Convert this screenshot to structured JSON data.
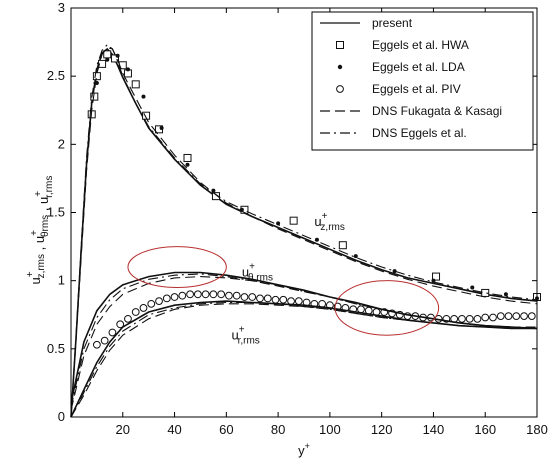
{
  "chart_data": {
    "type": "line",
    "xlabel": "y",
    "xlabel_sup": "+",
    "ylabel_parts": [
      {
        "base": "u",
        "sup": "+",
        "sub": "z,rms"
      },
      {
        "base": "u",
        "sup": "+",
        "sub": "θrms"
      },
      {
        "base": "u",
        "sup": "+",
        "sub": "r,rms"
      }
    ],
    "xlim": [
      0,
      180
    ],
    "ylim": [
      0,
      3
    ],
    "xticks": [
      0,
      20,
      40,
      60,
      80,
      100,
      120,
      140,
      160,
      180
    ],
    "xtick_labels": [
      "",
      "20",
      "40",
      "60",
      "80",
      "100",
      "120",
      "140",
      "160",
      "180"
    ],
    "yticks": [
      0,
      0.5,
      1,
      1.5,
      2,
      2.5,
      3
    ],
    "ytick_labels": [
      "0",
      "0.5",
      "1",
      "1.5",
      "2",
      "2.5",
      "3"
    ],
    "grid": false,
    "legend_position": "top-right",
    "annotations": [
      {
        "base": "u",
        "sup": "+",
        "sub": "z,rms",
        "x": 94,
        "y": 1.4
      },
      {
        "base": "u",
        "sup": "+",
        "sub": "θ,rms",
        "x": 66,
        "y": 1.03
      },
      {
        "base": "u",
        "sup": "+",
        "sub": "r,rms",
        "x": 62,
        "y": 0.57
      }
    ],
    "highlight_ellipses": [
      {
        "cx": 41,
        "cy": 1.1,
        "rx": 19,
        "ry": 0.15
      },
      {
        "cx": 122,
        "cy": 0.8,
        "rx": 20,
        "ry": 0.2
      }
    ],
    "series": [
      {
        "name": "present",
        "style": "solid",
        "groups": [
          {
            "x": [
              0,
              2,
              4,
              6,
              8,
              10,
              12,
              14,
              16,
              18,
              20,
              25,
              30,
              40,
              50,
              60,
              70,
              80,
              90,
              100,
              110,
              120,
              130,
              140,
              150,
              160,
              170,
              180
            ],
            "y": [
              0,
              0.6,
              1.25,
              1.85,
              2.3,
              2.55,
              2.67,
              2.7,
              2.66,
              2.58,
              2.49,
              2.3,
              2.12,
              1.89,
              1.7,
              1.56,
              1.47,
              1.39,
              1.31,
              1.23,
              1.15,
              1.08,
              1.02,
              0.98,
              0.94,
              0.9,
              0.87,
              0.85
            ]
          },
          {
            "x": [
              0,
              5,
              10,
              15,
              20,
              30,
              40,
              50,
              60,
              70,
              80,
              90,
              100,
              110,
              120,
              130,
              140,
              150,
              160,
              170,
              180
            ],
            "y": [
              0.1,
              0.55,
              0.78,
              0.9,
              0.97,
              1.03,
              1.06,
              1.06,
              1.04,
              1.01,
              0.97,
              0.93,
              0.88,
              0.84,
              0.79,
              0.75,
              0.72,
              0.69,
              0.67,
              0.66,
              0.65
            ]
          },
          {
            "x": [
              0,
              5,
              10,
              15,
              20,
              30,
              40,
              50,
              60,
              70,
              80,
              90,
              100,
              110,
              120,
              130,
              140,
              150,
              160,
              170,
              180
            ],
            "y": [
              0,
              0.2,
              0.4,
              0.55,
              0.66,
              0.77,
              0.82,
              0.84,
              0.85,
              0.84,
              0.83,
              0.82,
              0.8,
              0.77,
              0.74,
              0.71,
              0.69,
              0.67,
              0.66,
              0.65,
              0.65
            ]
          }
        ]
      },
      {
        "name": "Eggels et al. HWA",
        "style": "marker-square",
        "points": {
          "x": [
            8,
            9,
            10,
            12,
            14,
            17,
            20,
            22,
            25,
            29,
            34,
            45,
            56,
            67,
            86,
            105,
            141,
            160,
            180
          ],
          "y": [
            2.22,
            2.35,
            2.5,
            2.59,
            2.66,
            2.63,
            2.58,
            2.52,
            2.44,
            2.21,
            2.11,
            1.9,
            1.62,
            1.52,
            1.44,
            1.26,
            1.03,
            0.91,
            0.88
          ]
        }
      },
      {
        "name": "Eggels et al. LDA",
        "style": "marker-dot",
        "points": {
          "x": [
            10,
            14,
            18,
            22,
            28,
            35,
            45,
            55,
            66,
            80,
            95,
            110,
            125,
            140,
            155,
            168,
            180
          ],
          "y": [
            2.45,
            2.62,
            2.65,
            2.55,
            2.35,
            2.12,
            1.85,
            1.66,
            1.52,
            1.42,
            1.3,
            1.18,
            1.07,
            1.0,
            0.95,
            0.9,
            0.87
          ]
        }
      },
      {
        "name": "Eggels et al. PIV",
        "style": "marker-circle",
        "points": {
          "x": [
            10,
            13,
            16,
            19,
            22,
            25,
            28,
            31,
            34,
            37,
            40,
            43,
            46,
            49,
            52,
            55,
            58,
            61,
            64,
            67,
            70,
            73,
            76,
            79,
            82,
            85,
            88,
            91,
            94,
            97,
            100,
            103,
            106,
            109,
            112,
            115,
            118,
            121,
            124,
            127,
            130,
            133,
            136,
            139,
            142,
            145,
            148,
            151,
            154,
            157,
            160,
            163,
            166,
            169,
            172,
            175,
            178
          ],
          "y": [
            0.53,
            0.56,
            0.62,
            0.68,
            0.72,
            0.77,
            0.8,
            0.83,
            0.85,
            0.87,
            0.88,
            0.89,
            0.9,
            0.9,
            0.9,
            0.9,
            0.9,
            0.89,
            0.89,
            0.88,
            0.88,
            0.87,
            0.87,
            0.86,
            0.86,
            0.85,
            0.85,
            0.84,
            0.83,
            0.83,
            0.82,
            0.81,
            0.8,
            0.79,
            0.79,
            0.78,
            0.77,
            0.77,
            0.76,
            0.75,
            0.74,
            0.74,
            0.73,
            0.73,
            0.72,
            0.72,
            0.72,
            0.72,
            0.72,
            0.72,
            0.73,
            0.73,
            0.74,
            0.74,
            0.74,
            0.74,
            0.74
          ]
        }
      },
      {
        "name": "DNS Fukagata & Kasagi",
        "style": "dashed",
        "groups": [
          {
            "x": [
              0,
              2,
              4,
              6,
              8,
              10,
              12,
              14,
              16,
              18,
              20,
              25,
              30,
              40,
              50,
              60,
              70,
              80,
              90,
              100,
              110,
              120,
              130,
              140,
              150,
              160,
              170,
              180
            ],
            "y": [
              0,
              0.58,
              1.2,
              1.8,
              2.25,
              2.52,
              2.66,
              2.71,
              2.7,
              2.62,
              2.52,
              2.34,
              2.16,
              1.92,
              1.72,
              1.57,
              1.47,
              1.38,
              1.3,
              1.22,
              1.14,
              1.07,
              1.01,
              0.96,
              0.92,
              0.88,
              0.85,
              0.83
            ]
          },
          {
            "x": [
              0,
              5,
              10,
              15,
              20,
              30,
              40,
              50,
              60,
              70,
              80,
              90,
              100,
              110,
              120,
              130,
              140,
              150,
              160,
              170,
              180
            ],
            "y": [
              0.05,
              0.45,
              0.68,
              0.81,
              0.9,
              0.98,
              1.02,
              1.03,
              1.02,
              1.0,
              0.96,
              0.92,
              0.88,
              0.83,
              0.79,
              0.75,
              0.72,
              0.69,
              0.67,
              0.66,
              0.66
            ]
          },
          {
            "x": [
              0,
              5,
              10,
              15,
              20,
              30,
              40,
              50,
              60,
              70,
              80,
              90,
              100,
              110,
              120,
              130,
              140,
              150,
              160,
              170,
              180
            ],
            "y": [
              0,
              0.16,
              0.34,
              0.49,
              0.6,
              0.72,
              0.79,
              0.82,
              0.83,
              0.83,
              0.82,
              0.81,
              0.79,
              0.76,
              0.73,
              0.71,
              0.69,
              0.67,
              0.66,
              0.65,
              0.65
            ]
          }
        ]
      },
      {
        "name": "DNS Eggels et al.",
        "style": "dashdot",
        "groups": [
          {
            "x": [
              0,
              2,
              4,
              6,
              8,
              10,
              12,
              14,
              16,
              18,
              20,
              25,
              30,
              40,
              50,
              60,
              70,
              80,
              90,
              100,
              110,
              120,
              130,
              140,
              150,
              160,
              170,
              180
            ],
            "y": [
              0,
              0.62,
              1.28,
              1.9,
              2.34,
              2.58,
              2.69,
              2.73,
              2.7,
              2.61,
              2.5,
              2.3,
              2.13,
              1.9,
              1.71,
              1.58,
              1.49,
              1.41,
              1.33,
              1.25,
              1.17,
              1.1,
              1.04,
              0.99,
              0.95,
              0.91,
              0.88,
              0.86
            ]
          },
          {
            "x": [
              0,
              5,
              10,
              15,
              20,
              30,
              40,
              50,
              60,
              70,
              80,
              90,
              100,
              110,
              120,
              130,
              140,
              150,
              160,
              170,
              180
            ],
            "y": [
              0.07,
              0.5,
              0.73,
              0.86,
              0.94,
              1.01,
              1.04,
              1.05,
              1.03,
              1.0,
              0.97,
              0.92,
              0.88,
              0.83,
              0.79,
              0.75,
              0.72,
              0.69,
              0.67,
              0.66,
              0.65
            ]
          },
          {
            "x": [
              0,
              5,
              10,
              15,
              20,
              30,
              40,
              50,
              60,
              70,
              80,
              90,
              100,
              110,
              120,
              130,
              140,
              150,
              160,
              170,
              180
            ],
            "y": [
              0,
              0.18,
              0.37,
              0.52,
              0.63,
              0.75,
              0.8,
              0.83,
              0.84,
              0.84,
              0.83,
              0.81,
              0.79,
              0.76,
              0.73,
              0.71,
              0.69,
              0.67,
              0.66,
              0.65,
              0.65
            ]
          }
        ]
      }
    ],
    "colors": {
      "axis": "#000000",
      "line": "#111111",
      "ellipse": "#b83030"
    }
  }
}
